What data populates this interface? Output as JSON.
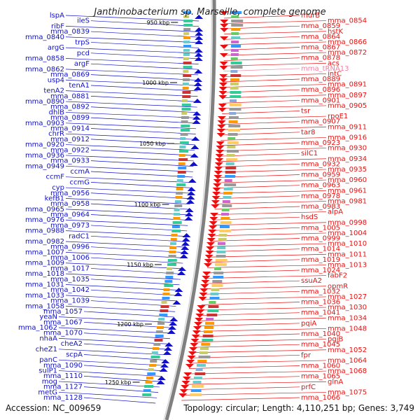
{
  "title": "Janthinobacterium sp. Marseille, complete genome",
  "footer": {
    "accession": "Accession: NC_009659",
    "stats": "Topology: circular; Length: 4,110,251 bp; Genes: 3,749"
  },
  "ruler": [
    "950 kbp",
    "1000 kbp",
    "1050 kbp",
    "1100 kbp",
    "1150 kbp",
    "1200 kbp",
    "1250 kbp"
  ],
  "colors": {
    "left_strand": "#1010c8",
    "right_strand": "#e81010",
    "rna": "#f080a0",
    "backbone": "#808080"
  },
  "left_labels": [
    "lspA",
    "ileS",
    "ribF",
    "mma_0839",
    "mma_0840",
    "trpS",
    "argG",
    "pcd",
    "mma_0858",
    "argF",
    "mma_0862",
    "mma_0869",
    "usp4",
    "tenA1",
    "tenA2",
    "mma_0881",
    "mma_0890",
    "mma_0892",
    "dhlB",
    "mma_0899",
    "mma_0903",
    "mma_0914",
    "chrR",
    "mma_0912",
    "mma_0920",
    "mma_0922",
    "mma_0936",
    "mma_0933",
    "mma_0949",
    "ccmA",
    "ccmF",
    "ccmG",
    "cyp",
    "mma_0956",
    "kefB1",
    "mma_0958",
    "mma_0965",
    "mma_0964",
    "mma_0976",
    "mma_0973",
    "mma_0988",
    "radC1",
    "mma_0982",
    "mma_0996",
    "mma_1007",
    "mma_1006",
    "mma_1009",
    "mma_1017",
    "mma_1018",
    "mma_1035",
    "mma_1031",
    "mma_1042",
    "mma_1033",
    "mma_1039",
    "mma_1058",
    "mma_1057",
    "yeaN",
    "mma_1067",
    "mma_1062",
    "mma_1070",
    "nhaA",
    "cheA2",
    "cheZ1",
    "scpA",
    "panC",
    "mma_1090",
    "sulP1",
    "mma_1110",
    "mog",
    "mma_1127",
    "metG",
    "mma_1128"
  ],
  "right_labels": [
    "murB",
    "mma_0854",
    "mma_0859",
    "hstK",
    "mma_0864",
    "mma_0866",
    "mma_0867",
    "mma_0872",
    "mma_0878",
    "acs",
    "mma_tRNA13",
    "intC",
    "mma_0889",
    "mma_0891",
    "mma_0896",
    "mma_0897",
    "mma_0901",
    "mma_0905",
    "tsr",
    "rpoE1",
    "mma_0907",
    "mma_0911",
    "tar8",
    "mma_0916",
    "mma_0923",
    "mma_0930",
    "silC1",
    "mma_0934",
    "mma_0932",
    "mma_0935",
    "mma_0959",
    "mma_0960",
    "mma_0963",
    "mma_0961",
    "mma_0978",
    "mma_0981",
    "mma_0983",
    "alpA",
    "hsdS",
    "mma_0998",
    "mma_1005",
    "mma_1004",
    "mma_0999",
    "mma_1010",
    "mma_1014",
    "mma_1011",
    "mma_1019",
    "mma_1013",
    "mma_1024",
    "fabF2",
    "ssuA2",
    "opmR",
    "mma_1032",
    "mma_1027",
    "mma_1036",
    "mma_1030",
    "mma_1041",
    "mma_1034",
    "pqiA",
    "mma_1048",
    "mma_1040",
    "pqiB",
    "mma_1045",
    "mma_1052",
    "fpr",
    "mma_1064",
    "mma_1060",
    "mma_1068",
    "mma_1065",
    "glnA",
    "prfC",
    "mma_1075",
    "mma_1066"
  ]
}
